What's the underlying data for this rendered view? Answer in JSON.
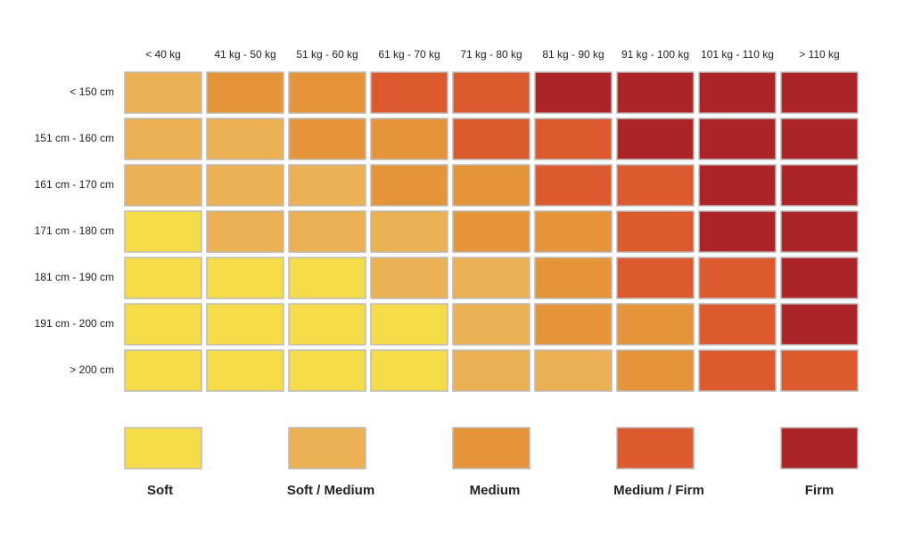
{
  "chart_data": {
    "type": "heatmap",
    "columns": [
      "< 40 kg",
      "41 kg - 50 kg",
      "51 kg - 60 kg",
      "61 kg - 70 kg",
      "71 kg - 80 kg",
      "81 kg - 90 kg",
      "91 kg - 100 kg",
      "101 kg - 110 kg",
      "> 110 kg"
    ],
    "rows": [
      "< 150 cm",
      "151 cm - 160 cm",
      "161 cm - 170 cm",
      "171 cm - 180 cm",
      "181 cm - 190 cm",
      "191 cm - 200 cm",
      "> 200 cm"
    ],
    "legend": [
      {
        "name": "Soft",
        "color": "#f7dc4a"
      },
      {
        "name": "Soft / Medium",
        "color": "#ecb153"
      },
      {
        "name": "Medium",
        "color": "#e6943a"
      },
      {
        "name": "Medium / Firm",
        "color": "#dc5a2e"
      },
      {
        "name": "Firm",
        "color": "#ac2428"
      }
    ],
    "cells": [
      [
        "#ecb153",
        "#e6943a",
        "#e6943a",
        "#dc5a2e",
        "#dc5a2e",
        "#ac2428",
        "#ac2428",
        "#ac2428",
        "#ac2428"
      ],
      [
        "#ecb153",
        "#ecb153",
        "#e6943a",
        "#e6943a",
        "#dc5a2e",
        "#dc5a2e",
        "#ac2428",
        "#ac2428",
        "#ac2428"
      ],
      [
        "#ecb153",
        "#ecb153",
        "#ecb153",
        "#e6943a",
        "#e6943a",
        "#dc5a2e",
        "#dc5a2e",
        "#ac2428",
        "#ac2428"
      ],
      [
        "#f7dc4a",
        "#ecb153",
        "#ecb153",
        "#ecb153",
        "#e6943a",
        "#e6943a",
        "#dc5a2e",
        "#ac2428",
        "#ac2428"
      ],
      [
        "#f7dc4a",
        "#f7dc4a",
        "#f7dc4a",
        "#ecb153",
        "#ecb153",
        "#e6943a",
        "#dc5a2e",
        "#dc5a2e",
        "#ac2428"
      ],
      [
        "#f7dc4a",
        "#f7dc4a",
        "#f7dc4a",
        "#f7dc4a",
        "#ecb153",
        "#e6943a",
        "#e6943a",
        "#dc5a2e",
        "#ac2428"
      ],
      [
        "#f7dc4a",
        "#f7dc4a",
        "#f7dc4a",
        "#f7dc4a",
        "#ecb153",
        "#ecb153",
        "#e6943a",
        "#dc5a2e",
        "#dc5a2e"
      ]
    ]
  }
}
